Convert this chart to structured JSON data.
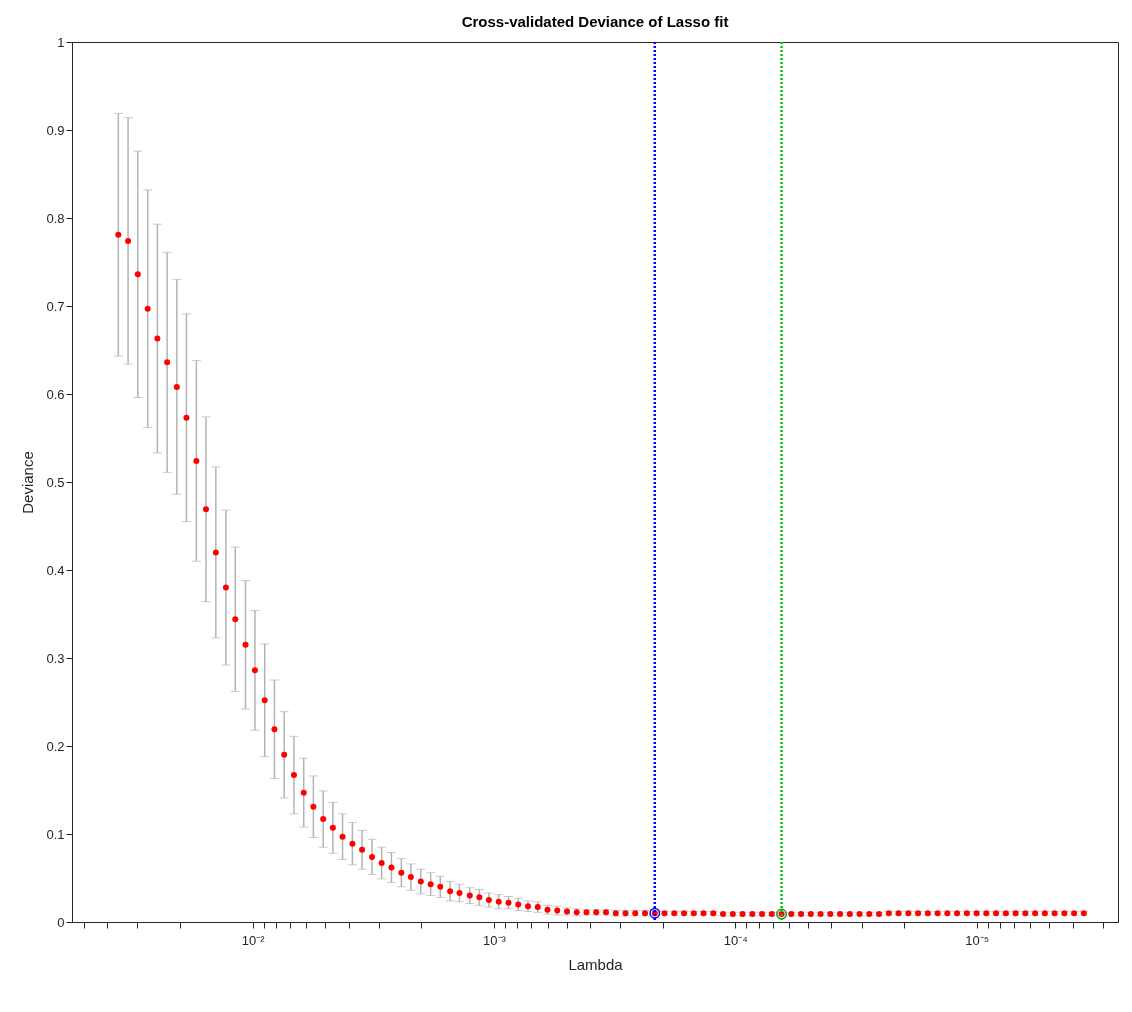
{
  "chart_data": {
    "type": "scatter",
    "title": "Cross-validated Deviance of Lasso fit",
    "xlabel": "Lambda",
    "ylabel": "Deviance",
    "log": "x",
    "grid": false,
    "marker": "circle",
    "xlim": [
      0.056,
      2.6e-06
    ],
    "xticks": [
      {
        "value": 0.05,
        "label": null
      },
      {
        "value": 0.04,
        "label": null
      },
      {
        "value": 0.03,
        "label": null
      },
      {
        "value": 0.02,
        "label": null
      },
      {
        "value": 0.01,
        "label": "10⁻²"
      },
      {
        "value": 0.009,
        "label": null
      },
      {
        "value": 0.008,
        "label": null
      },
      {
        "value": 0.007,
        "label": null
      },
      {
        "value": 0.006,
        "label": null
      },
      {
        "value": 0.005,
        "label": null
      },
      {
        "value": 0.004,
        "label": null
      },
      {
        "value": 0.003,
        "label": null
      },
      {
        "value": 0.002,
        "label": null
      },
      {
        "value": 0.001,
        "label": "10⁻³"
      },
      {
        "value": 0.0009,
        "label": null
      },
      {
        "value": 0.0008,
        "label": null
      },
      {
        "value": 0.0007,
        "label": null
      },
      {
        "value": 0.0006,
        "label": null
      },
      {
        "value": 0.0005,
        "label": null
      },
      {
        "value": 0.0004,
        "label": null
      },
      {
        "value": 0.0003,
        "label": null
      },
      {
        "value": 0.0002,
        "label": null
      },
      {
        "value": 0.0001,
        "label": "10⁻⁴"
      },
      {
        "value": 9e-05,
        "label": null
      },
      {
        "value": 8e-05,
        "label": null
      },
      {
        "value": 7e-05,
        "label": null
      },
      {
        "value": 6e-05,
        "label": null
      },
      {
        "value": 5e-05,
        "label": null
      },
      {
        "value": 4e-05,
        "label": null
      },
      {
        "value": 3e-05,
        "label": null
      },
      {
        "value": 2e-05,
        "label": null
      },
      {
        "value": 1e-05,
        "label": "10⁻⁵"
      },
      {
        "value": 9e-06,
        "label": null
      },
      {
        "value": 8e-06,
        "label": null
      },
      {
        "value": 7e-06,
        "label": null
      },
      {
        "value": 6e-06,
        "label": null
      },
      {
        "value": 5e-06,
        "label": null
      },
      {
        "value": 4e-06,
        "label": null
      },
      {
        "value": 3e-06,
        "label": null
      }
    ],
    "ylim": [
      0,
      1
    ],
    "yticks": [
      0,
      0.1,
      0.2,
      0.3,
      0.4,
      0.5,
      0.6,
      0.7,
      0.8,
      0.9,
      1
    ],
    "series": [
      {
        "color": "#ff0000",
        "x": [
          0.036,
          0.0328,
          0.0299,
          0.0272,
          0.0248,
          0.0226,
          0.0206,
          0.0188,
          0.0171,
          0.0156,
          0.0142,
          0.0129,
          0.0118,
          0.0107,
          0.00978,
          0.00891,
          0.00812,
          0.0074,
          0.00674,
          0.00614,
          0.0056,
          0.0051,
          0.00465,
          0.00424,
          0.00386,
          0.00352,
          0.0032,
          0.00292,
          0.00266,
          0.00242,
          0.00221,
          0.00201,
          0.00183,
          0.00167,
          0.00152,
          0.00139,
          0.00126,
          0.00115,
          0.00105,
          0.000956,
          0.000871,
          0.0007935,
          0.0007231,
          0.0006589,
          0.0006003,
          0.000547,
          0.0004984,
          0.0004542,
          0.0004138,
          0.0003771,
          0.0003436,
          0.0003131,
          0.0002852,
          0.0002599,
          0.0002368,
          0.0002158,
          0.0001966,
          0.0001791,
          0.0001632,
          0.0001487,
          0.0001355,
          0.0001235,
          0.0001125,
          0.0001025,
          9.342e-05,
          8.511e-05,
          7.755e-05,
          7.066e-05,
          6.439e-05,
          5.866e-05,
          5.346e-05,
          4.871e-05,
          4.438e-05,
          4.044e-05,
          3.685e-05,
          3.357e-05,
          3.059e-05,
          2.788e-05,
          2.54e-05,
          2.314e-05,
          2.109e-05,
          1.921e-05,
          1.751e-05,
          1.595e-05,
          1.453e-05,
          1.324e-05,
          1.207e-05,
          1.099e-05,
          1.002e-05,
          9.129e-06,
          8.318e-06,
          7.579e-06,
          6.906e-06,
          6.292e-06,
          5.733e-06,
          5.224e-06,
          4.76e-06,
          4.337e-06,
          3.952e-06,
          3.602e-06
        ],
        "values": [
          0.781,
          0.774,
          0.736,
          0.697,
          0.663,
          0.636,
          0.608,
          0.573,
          0.524,
          0.469,
          0.42,
          0.38,
          0.344,
          0.315,
          0.286,
          0.252,
          0.219,
          0.19,
          0.167,
          0.147,
          0.131,
          0.117,
          0.107,
          0.097,
          0.089,
          0.082,
          0.074,
          0.067,
          0.062,
          0.056,
          0.051,
          0.046,
          0.043,
          0.04,
          0.035,
          0.033,
          0.03,
          0.028,
          0.025,
          0.023,
          0.022,
          0.02,
          0.018,
          0.017,
          0.014,
          0.013,
          0.012,
          0.011,
          0.011,
          0.011,
          0.011,
          0.01,
          0.01,
          0.01,
          0.01,
          0.01,
          0.01,
          0.01,
          0.01,
          0.01,
          0.01,
          0.01,
          0.009,
          0.009,
          0.009,
          0.009,
          0.009,
          0.009,
          0.009,
          0.009,
          0.009,
          0.009,
          0.009,
          0.009,
          0.009,
          0.009,
          0.009,
          0.009,
          0.009,
          0.01,
          0.01,
          0.01,
          0.01,
          0.01,
          0.01,
          0.01,
          0.01,
          0.01,
          0.01,
          0.01,
          0.01,
          0.01,
          0.01,
          0.01,
          0.01,
          0.01,
          0.01,
          0.01,
          0.01,
          0.01
        ],
        "errors": [
          0.138,
          0.14,
          0.14,
          0.135,
          0.13,
          0.125,
          0.122,
          0.118,
          0.114,
          0.105,
          0.097,
          0.088,
          0.082,
          0.073,
          0.068,
          0.064,
          0.056,
          0.049,
          0.044,
          0.039,
          0.035,
          0.032,
          0.029,
          0.026,
          0.024,
          0.022,
          0.02,
          0.018,
          0.017,
          0.016,
          0.015,
          0.014,
          0.013,
          0.012,
          0.011,
          0.01,
          0.009,
          0.009,
          0.008,
          0.008,
          0.007,
          0.007,
          0.006,
          0.006,
          0.005,
          0.005,
          0.004,
          0.004,
          0.003,
          0.003,
          0.003,
          0.003,
          0.003,
          0.003,
          0.003,
          0.003,
          0.002,
          0.002,
          0.002,
          0.002,
          0.002,
          0.002,
          0.002,
          0.002,
          0.002,
          0.002,
          0.002,
          0.002,
          0.002,
          0.002,
          0.002,
          0.002,
          0.002,
          0.002,
          0.002,
          0.002,
          0.002,
          0.002,
          0.002,
          0.002,
          0.002,
          0.002,
          0.002,
          0.002,
          0.002,
          0.002,
          0.002,
          0.002,
          0.002,
          0.002,
          0.002,
          0.002,
          0.002,
          0.002,
          0.002,
          0.002,
          0.002,
          0.002,
          0.002,
          0.002
        ]
      },
      {
        "color": "#0000ff",
        "x": [
          0.0002158
        ],
        "values": [
          0.01
        ]
      },
      {
        "color": "#228b22",
        "x": [
          6.439e-05
        ],
        "values": [
          0.009
        ]
      }
    ],
    "ref_lines": [
      {
        "axis": "x",
        "value": 0.0002158,
        "color": "#0000ff",
        "line_style": "dotted"
      },
      {
        "axis": "x",
        "value": 6.439e-05,
        "color": "#00cc00",
        "line_style": "dotted"
      }
    ]
  }
}
